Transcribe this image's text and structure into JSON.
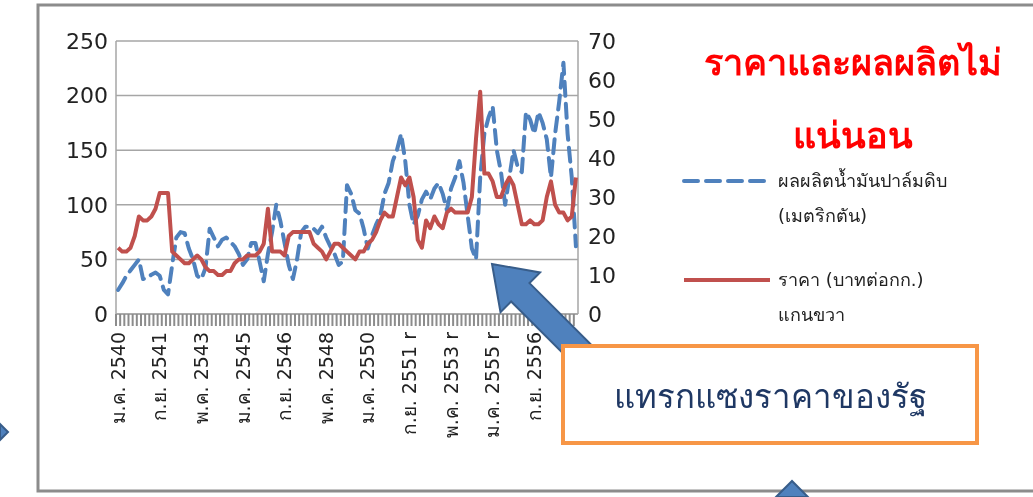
{
  "chart_data": {
    "type": "line",
    "title": "ราคาและผลผลิตไม่แน่นอน",
    "categories": [
      "ม.ค. 2540",
      null,
      null,
      null,
      null,
      null,
      null,
      null,
      null,
      null,
      "ก.ย. 2541",
      null,
      null,
      null,
      null,
      null,
      null,
      null,
      null,
      null,
      "พ.ค. 2543",
      null,
      null,
      null,
      null,
      null,
      null,
      null,
      null,
      null,
      "ม.ค. 2545",
      null,
      null,
      null,
      null,
      null,
      null,
      null,
      null,
      null,
      "ก.ย. 2546",
      null,
      null,
      null,
      null,
      null,
      null,
      null,
      null,
      null,
      "พ.ค. 2548",
      null,
      null,
      null,
      null,
      null,
      null,
      null,
      null,
      null,
      "ม.ค. 2550",
      null,
      null,
      null,
      null,
      null,
      null,
      null,
      null,
      null,
      "ก.ย. 2551 r",
      null,
      null,
      null,
      null,
      null,
      null,
      null,
      null,
      null,
      "พ.ค. 2553 r",
      null,
      null,
      null,
      null,
      null,
      null,
      null,
      null,
      null,
      "ม.ค. 2555 r",
      null,
      null,
      null,
      null,
      null,
      null,
      null,
      null,
      null,
      "ก.ย. 2556",
      null,
      null,
      null,
      null,
      null,
      null,
      null,
      null,
      null,
      null
    ],
    "series": [
      {
        "name": "ผลผลิตน้ำมันปาล์มดิบ (เมตริกตัน)",
        "color": "#4f81bd",
        "line_style": "dashed",
        "values": [
          22,
          28,
          35,
          40,
          45,
          50,
          32,
          33,
          36,
          38,
          35,
          22,
          18,
          45,
          70,
          75,
          74,
          60,
          50,
          35,
          32,
          42,
          78,
          70,
          62,
          68,
          70,
          66,
          62,
          55,
          45,
          50,
          65,
          65,
          48,
          30,
          55,
          75,
          100,
          85,
          65,
          45,
          32,
          50,
          75,
          80,
          80,
          78,
          74,
          80,
          70,
          62,
          55,
          45,
          48,
          118,
          110,
          95,
          92,
          78,
          60,
          72,
          82,
          90,
          110,
          120,
          140,
          150,
          165,
          140,
          100,
          82,
          90,
          105,
          112,
          105,
          115,
          120,
          110,
          95,
          115,
          125,
          140,
          120,
          90,
          60,
          50,
          125,
          165,
          180,
          190,
          150,
          130,
          100,
          125,
          150,
          135,
          130,
          185,
          178,
          165,
          185,
          175,
          160,
          125,
          165,
          195,
          230,
          165,
          125,
          62
        ]
      },
      {
        "name": "ราคา (บาทต่อกก.) แกนขวา",
        "color": "#c0504d",
        "line_style": "solid",
        "axis": "y2",
        "values": [
          17,
          16,
          16,
          17,
          20,
          25,
          24,
          24,
          25,
          27,
          31,
          31,
          31,
          16,
          15,
          14,
          13,
          13,
          14,
          15,
          14,
          12,
          11,
          11,
          10,
          10,
          11,
          11,
          13,
          14,
          14,
          15,
          15,
          15,
          16,
          18,
          27,
          16,
          16,
          16,
          15,
          20,
          21,
          21,
          21,
          21,
          21,
          18,
          17,
          16,
          14,
          16,
          18,
          18,
          17,
          16,
          15,
          14,
          16,
          16,
          18,
          19,
          21,
          24,
          26,
          25,
          25,
          30,
          35,
          33,
          35,
          30,
          19,
          17,
          24,
          22,
          25,
          23,
          22,
          26,
          27,
          26,
          26,
          26,
          26,
          30,
          45,
          57,
          36,
          36,
          34,
          30,
          30,
          33,
          35,
          33,
          28,
          23,
          23,
          24,
          23,
          23,
          24,
          30,
          34,
          28,
          26,
          26,
          24,
          25,
          35
        ]
      }
    ],
    "ylim": [
      0,
      250
    ],
    "yticks": [
      0,
      50,
      100,
      150,
      200,
      250
    ],
    "y2lim": [
      0,
      70
    ],
    "y2ticks": [
      0,
      10,
      20,
      30,
      40,
      50,
      60,
      70
    ],
    "grid": "y",
    "legend": "right",
    "annotations": [
      "แทรกแซงราคาของรัฐ"
    ]
  }
}
